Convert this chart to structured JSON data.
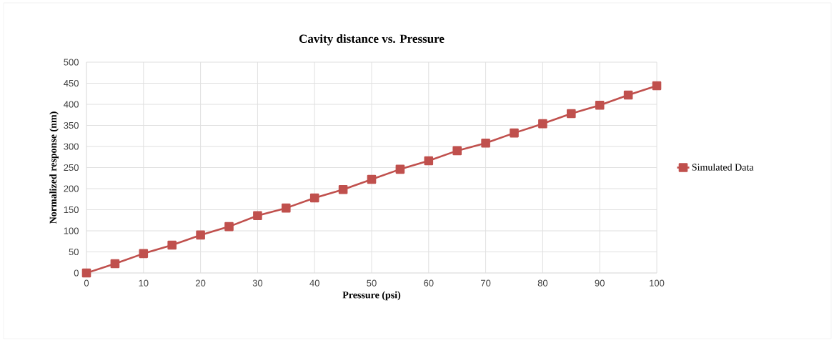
{
  "chart_data": {
    "type": "line",
    "title": "Cavity distance vs. Pressure",
    "xlabel": "Pressure (psi)",
    "ylabel": "Normalized response (nm)",
    "x": [
      0,
      5,
      10,
      15,
      20,
      25,
      30,
      35,
      40,
      45,
      50,
      55,
      60,
      65,
      70,
      75,
      80,
      85,
      90,
      95,
      100
    ],
    "series": [
      {
        "name": "Simulated Data",
        "color": "#c0504d",
        "values": [
          0,
          22,
          46,
          66,
          90,
          110,
          136,
          154,
          178,
          198,
          222,
          246,
          266,
          290,
          308,
          332,
          354,
          378,
          398,
          422,
          444
        ]
      }
    ],
    "xlim": [
      0,
      100
    ],
    "xticks": [
      0,
      10,
      20,
      30,
      40,
      50,
      60,
      70,
      80,
      90,
      100
    ],
    "ylim": [
      0,
      500
    ],
    "yticks": [
      0,
      50,
      100,
      150,
      200,
      250,
      300,
      350,
      400,
      450,
      500
    ],
    "grid": true,
    "legend": "right",
    "marker": "square",
    "line_style": "solid"
  }
}
